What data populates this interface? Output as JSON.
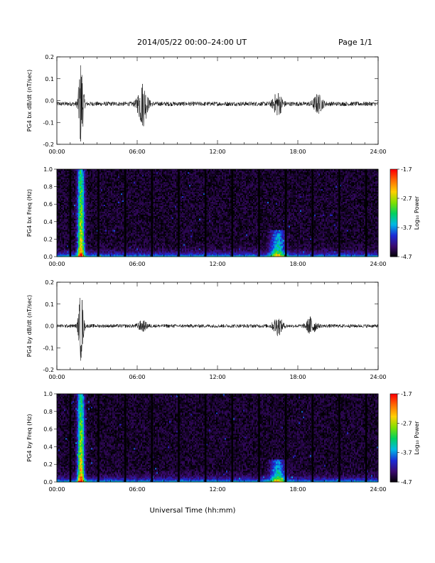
{
  "header": {
    "title": "2014/05/22  00:00–24:00 UT",
    "page": "Page 1/1"
  },
  "xaxis": {
    "label": "Universal Time (hh:mm)",
    "ticks": [
      "00:00",
      "06:00",
      "12:00",
      "18:00",
      "24:00"
    ],
    "range_hours": [
      0,
      24
    ]
  },
  "colorbar": {
    "label": "Log₁₀ Power",
    "ticks": [
      "-1.7",
      "-2.7",
      "-3.7",
      "-4.7"
    ],
    "range": [
      -4.7,
      -1.7
    ],
    "colors": [
      "#000000",
      "#3b0a6e",
      "#1b2bd6",
      "#00b8e6",
      "#00d060",
      "#80e000",
      "#ffd000",
      "#ff7000",
      "#ff0000"
    ]
  },
  "chart_data": [
    {
      "type": "line",
      "ylabel": "PG4 bx dB/dt (nT/sec)",
      "ylim": [
        -0.2,
        0.2
      ],
      "yticks": [
        "0.2",
        "0.1",
        "0.0",
        "-0.1",
        "-0.2"
      ],
      "baseline": -0.015,
      "noise_amplitude": 0.01,
      "bursts": [
        {
          "t": 1.8,
          "amplitude": 0.2
        },
        {
          "t": 6.4,
          "amplitude": 0.1
        },
        {
          "t": 16.5,
          "amplitude": 0.05
        },
        {
          "t": 19.5,
          "amplitude": 0.04
        }
      ]
    },
    {
      "type": "heatmap",
      "ylabel": "PG4 bx Freq (Hz)",
      "ylim": [
        0,
        1.0
      ],
      "yticks": [
        "1.0",
        "0.8",
        "0.6",
        "0.4",
        "0.2",
        "0.0"
      ],
      "gap_times_hours": [
        1.0,
        3.1,
        5.1,
        7.1,
        9.1,
        11.1,
        13.1,
        15.1,
        17.1,
        19.1,
        21.1,
        23.1
      ],
      "features": [
        {
          "t": 1.8,
          "fmax": 1.0,
          "level": -2.0
        },
        {
          "t": 16.5,
          "fmax": 0.3,
          "level": -3.0
        }
      ]
    },
    {
      "type": "line",
      "ylabel": "PG4 by dB/dt (nT/sec)",
      "ylim": [
        -0.2,
        0.2
      ],
      "yticks": [
        "0.2",
        "0.1",
        "0.0",
        "-0.1",
        "-0.2"
      ],
      "baseline": 0.0,
      "noise_amplitude": 0.008,
      "bursts": [
        {
          "t": 1.8,
          "amplitude": 0.16
        },
        {
          "t": 6.4,
          "amplitude": 0.02
        },
        {
          "t": 16.5,
          "amplitude": 0.04
        },
        {
          "t": 19.0,
          "amplitude": 0.04
        }
      ]
    },
    {
      "type": "heatmap",
      "ylabel": "PG4 by Freq (Hz)",
      "ylim": [
        0,
        1.0
      ],
      "yticks": [
        "1.0",
        "0.8",
        "0.6",
        "0.4",
        "0.2",
        "0.0"
      ],
      "gap_times_hours": [
        1.0,
        3.1,
        5.1,
        7.1,
        9.1,
        11.1,
        13.1,
        15.1,
        17.1,
        19.1,
        21.1,
        23.1
      ],
      "features": [
        {
          "t": 1.8,
          "fmax": 1.0,
          "level": -2.0
        },
        {
          "t": 16.5,
          "fmax": 0.25,
          "level": -3.0
        }
      ]
    }
  ]
}
